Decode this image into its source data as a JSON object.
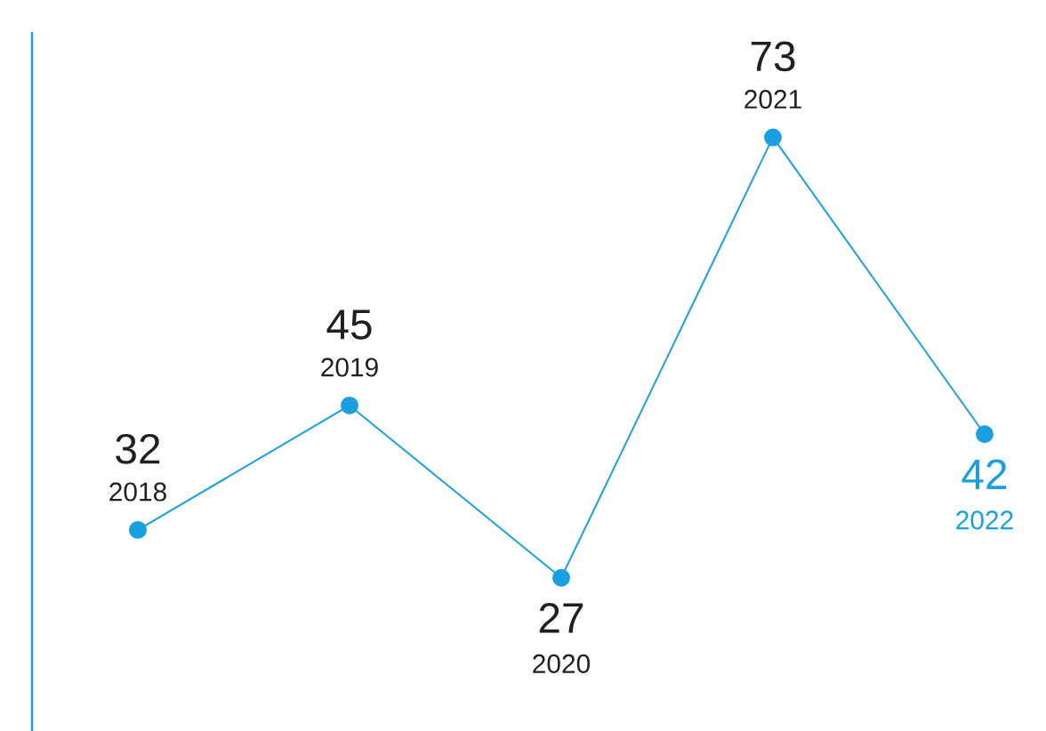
{
  "chart_data": {
    "type": "line",
    "categories": [
      "2018",
      "2019",
      "2020",
      "2021",
      "2022"
    ],
    "values": [
      32,
      45,
      27,
      73,
      42
    ],
    "color": "#1aa0e0",
    "marker": "circle",
    "line_style": "solid",
    "data_labels": true,
    "ylim": [
      11,
      84
    ]
  }
}
